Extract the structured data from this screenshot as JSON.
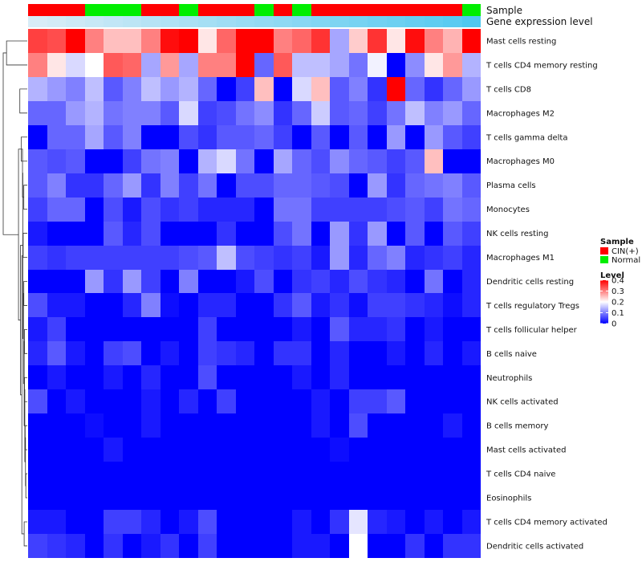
{
  "chart_data": {
    "type": "heatmap",
    "title": "",
    "column_count": 24,
    "rows": [
      "Mast cells resting",
      "T cells CD4 memory resting",
      "T cells CD8",
      "Macrophages M2",
      "T cells gamma delta",
      "Macrophages M0",
      "Plasma cells",
      "Monocytes",
      "NK cells resting",
      "Macrophages M1",
      "Dendritic cells resting",
      "T cells regulatory  Tregs",
      "T cells follicular helper",
      "B cells naive",
      "Neutrophils",
      "NK cells activated",
      "B cells memory",
      "Mast cells activated",
      "T cells CD4 naive",
      "Eosinophils",
      "T cells CD4 memory activated",
      "Dendritic cells activated"
    ],
    "values": [
      [
        0.35,
        0.34,
        0.4,
        0.3,
        0.25,
        0.25,
        0.3,
        0.39,
        0.4,
        0.22,
        0.32,
        0.4,
        0.4,
        0.3,
        0.32,
        0.36,
        0.13,
        0.24,
        0.36,
        0.22,
        0.39,
        0.3,
        0.26,
        0.4
      ],
      [
        0.3,
        0.22,
        0.17,
        0.2,
        0.33,
        0.32,
        0.13,
        0.28,
        0.13,
        0.3,
        0.3,
        0.4,
        0.08,
        0.33,
        0.15,
        0.15,
        0.13,
        0.09,
        0.19,
        0.0,
        0.11,
        0.22,
        0.28,
        0.14
      ],
      [
        0.14,
        0.12,
        0.1,
        0.15,
        0.07,
        0.1,
        0.15,
        0.12,
        0.14,
        0.08,
        0.0,
        0.05,
        0.25,
        0.0,
        0.17,
        0.25,
        0.07,
        0.1,
        0.04,
        0.4,
        0.08,
        0.04,
        0.08,
        0.12
      ],
      [
        0.08,
        0.08,
        0.12,
        0.14,
        0.09,
        0.1,
        0.1,
        0.07,
        0.17,
        0.05,
        0.06,
        0.09,
        0.11,
        0.04,
        0.08,
        0.16,
        0.07,
        0.08,
        0.05,
        0.09,
        0.15,
        0.1,
        0.12,
        0.08
      ],
      [
        0.0,
        0.08,
        0.08,
        0.13,
        0.07,
        0.1,
        0.0,
        0.0,
        0.06,
        0.04,
        0.07,
        0.07,
        0.08,
        0.05,
        0.0,
        0.07,
        0.0,
        0.07,
        0.0,
        0.12,
        0.0,
        0.12,
        0.07,
        0.05
      ],
      [
        0.07,
        0.06,
        0.07,
        0.0,
        0.0,
        0.05,
        0.09,
        0.1,
        0.0,
        0.14,
        0.17,
        0.09,
        0.0,
        0.13,
        0.08,
        0.06,
        0.11,
        0.08,
        0.07,
        0.05,
        0.07,
        0.25,
        0.0,
        0.0
      ],
      [
        0.07,
        0.1,
        0.04,
        0.04,
        0.08,
        0.12,
        0.04,
        0.1,
        0.05,
        0.09,
        0.0,
        0.06,
        0.06,
        0.08,
        0.08,
        0.07,
        0.06,
        0.0,
        0.12,
        0.04,
        0.08,
        0.09,
        0.1,
        0.07
      ],
      [
        0.05,
        0.08,
        0.08,
        0.0,
        0.06,
        0.02,
        0.06,
        0.04,
        0.05,
        0.03,
        0.03,
        0.03,
        0.0,
        0.09,
        0.09,
        0.05,
        0.05,
        0.05,
        0.05,
        0.06,
        0.07,
        0.05,
        0.09,
        0.08
      ],
      [
        0.02,
        0.0,
        0.0,
        0.0,
        0.07,
        0.03,
        0.06,
        0.0,
        0.0,
        0.0,
        0.04,
        0.0,
        0.0,
        0.06,
        0.09,
        0.0,
        0.12,
        0.04,
        0.12,
        0.0,
        0.07,
        0.0,
        0.07,
        0.05
      ],
      [
        0.05,
        0.04,
        0.05,
        0.05,
        0.05,
        0.05,
        0.05,
        0.05,
        0.06,
        0.07,
        0.15,
        0.06,
        0.05,
        0.04,
        0.05,
        0.02,
        0.12,
        0.03,
        0.08,
        0.1,
        0.03,
        0.04,
        0.05,
        0.03
      ],
      [
        0.0,
        0.0,
        0.0,
        0.12,
        0.04,
        0.12,
        0.05,
        0.0,
        0.1,
        0.0,
        0.0,
        0.02,
        0.06,
        0.0,
        0.04,
        0.05,
        0.03,
        0.06,
        0.04,
        0.03,
        0.0,
        0.09,
        0.0,
        0.03
      ],
      [
        0.06,
        0.02,
        0.02,
        0.0,
        0.0,
        0.03,
        0.1,
        0.01,
        0.0,
        0.03,
        0.03,
        0.0,
        0.0,
        0.04,
        0.07,
        0.02,
        0.04,
        0.01,
        0.05,
        0.05,
        0.04,
        0.03,
        0.01,
        0.03
      ],
      [
        0.02,
        0.05,
        0.0,
        0.0,
        0.0,
        0.0,
        0.0,
        0.0,
        0.0,
        0.05,
        0.0,
        0.0,
        0.0,
        0.0,
        0.02,
        0.0,
        0.07,
        0.03,
        0.03,
        0.04,
        0.0,
        0.02,
        0.0,
        0.0
      ],
      [
        0.03,
        0.07,
        0.02,
        0.0,
        0.05,
        0.06,
        0.0,
        0.02,
        0.0,
        0.05,
        0.04,
        0.03,
        0.0,
        0.04,
        0.04,
        0.0,
        0.03,
        0.0,
        0.0,
        0.02,
        0.0,
        0.03,
        0.0,
        0.02
      ],
      [
        0.0,
        0.02,
        0.0,
        0.0,
        0.02,
        0.0,
        0.03,
        0.0,
        0.0,
        0.06,
        0.0,
        0.0,
        0.0,
        0.0,
        0.02,
        0.0,
        0.03,
        0.0,
        0.0,
        0.0,
        0.0,
        0.0,
        0.0,
        0.0
      ],
      [
        0.06,
        0.0,
        0.02,
        0.0,
        0.0,
        0.0,
        0.02,
        0.0,
        0.03,
        0.0,
        0.05,
        0.0,
        0.0,
        0.0,
        0.0,
        0.02,
        0.0,
        0.05,
        0.05,
        0.07,
        0.0,
        0.0,
        0.0,
        0.0
      ],
      [
        0.0,
        0.0,
        0.0,
        0.01,
        0.0,
        0.0,
        0.02,
        0.0,
        0.0,
        0.0,
        0.0,
        0.0,
        0.0,
        0.0,
        0.0,
        0.02,
        0.0,
        0.06,
        0.0,
        0.0,
        0.0,
        0.0,
        0.02,
        0.0
      ],
      [
        0.0,
        0.0,
        0.0,
        0.0,
        0.02,
        0.0,
        0.0,
        0.0,
        0.0,
        0.0,
        0.0,
        0.0,
        0.0,
        0.0,
        0.0,
        0.0,
        0.01,
        0.0,
        0.0,
        0.0,
        0.0,
        0.0,
        0.0,
        0.0
      ],
      [
        0.0,
        0.0,
        0.0,
        0.0,
        0.0,
        0.0,
        0.0,
        0.0,
        0.0,
        0.0,
        0.0,
        0.0,
        0.0,
        0.0,
        0.0,
        0.0,
        0.0,
        0.0,
        0.0,
        0.0,
        0.0,
        0.0,
        0.0,
        0.0
      ],
      [
        0.0,
        0.0,
        0.0,
        0.0,
        0.0,
        0.0,
        0.0,
        0.0,
        0.0,
        0.0,
        0.0,
        0.0,
        0.0,
        0.0,
        0.0,
        0.0,
        0.0,
        0.0,
        0.0,
        0.0,
        0.0,
        0.0,
        0.0,
        0.0
      ],
      [
        0.02,
        0.02,
        0.0,
        0.0,
        0.05,
        0.05,
        0.03,
        0.0,
        0.02,
        0.06,
        0.0,
        0.0,
        0.0,
        0.0,
        0.02,
        0.0,
        0.04,
        0.18,
        0.03,
        0.02,
        0.0,
        0.02,
        0.0,
        0.02
      ],
      [
        0.05,
        0.04,
        0.03,
        0.0,
        0.04,
        0.0,
        0.02,
        0.04,
        0.0,
        0.05,
        0.0,
        0.0,
        0.0,
        0.0,
        0.02,
        0.02,
        0.0,
        0.2,
        0.0,
        0.0,
        0.04,
        0.0,
        0.04,
        0.04
      ]
    ],
    "column_annotations": [
      {
        "name": "Sample",
        "values": [
          "CIN(+)",
          "CIN(+)",
          "CIN(+)",
          "Normal",
          "Normal",
          "Normal",
          "CIN(+)",
          "CIN(+)",
          "Normal",
          "CIN(+)",
          "CIN(+)",
          "CIN(+)",
          "Normal",
          "CIN(+)",
          "Normal",
          "CIN(+)",
          "CIN(+)",
          "CIN(+)",
          "CIN(+)",
          "CIN(+)",
          "CIN(+)",
          "CIN(+)",
          "CIN(+)",
          "Normal"
        ]
      },
      {
        "name": "Gene expression level",
        "values": [
          0.04,
          0.08,
          0.12,
          0.16,
          0.2,
          0.24,
          0.28,
          0.32,
          0.36,
          0.4,
          0.44,
          0.48,
          0.52,
          0.56,
          0.6,
          0.64,
          0.68,
          0.72,
          0.76,
          0.8,
          0.84,
          0.88,
          0.92,
          1.0
        ]
      }
    ],
    "legend": {
      "sample_title": "Sample",
      "sample_categories": [
        {
          "label": "CIN(+)",
          "color": "#ff0000"
        },
        {
          "label": "Normal",
          "color": "#00ee00"
        }
      ],
      "level_title": "Level",
      "level_ticks": [
        "0.4",
        "0.3",
        "0.2",
        "0.1",
        "0"
      ],
      "color_low": "#0000ff",
      "color_mid": "#ffffff",
      "color_high": "#ff0000",
      "value_range": [
        0,
        0.4
      ],
      "position": "right"
    },
    "dendrogram": {
      "rows": true,
      "columns": false,
      "merges": [
        [
          -1,
          -2,
          3.0
        ],
        [
          -3,
          -4,
          1.0
        ],
        [
          -5,
          -6,
          0.8
        ],
        [
          -7,
          -8,
          0.4
        ],
        [
          -9,
          -10,
          0.5
        ],
        [
          3,
          4,
          0.6
        ],
        [
          -11,
          -12,
          0.4
        ],
        [
          -13,
          -14,
          0.3
        ],
        [
          -15,
          -16,
          0.3
        ],
        [
          -17,
          -18,
          0.2
        ],
        [
          -19,
          -20,
          0.1
        ],
        [
          10,
          11,
          0.15
        ],
        [
          9,
          12,
          0.25
        ],
        [
          8,
          13,
          0.35
        ],
        [
          7,
          14,
          0.45
        ],
        [
          6,
          15,
          0.55
        ],
        [
          -21,
          -22,
          0.35
        ],
        [
          16,
          17,
          0.7
        ],
        [
          5,
          18,
          0.9
        ],
        [
          3,
          19,
          1.2
        ],
        [
          1,
          20,
          3.5
        ]
      ]
    }
  }
}
